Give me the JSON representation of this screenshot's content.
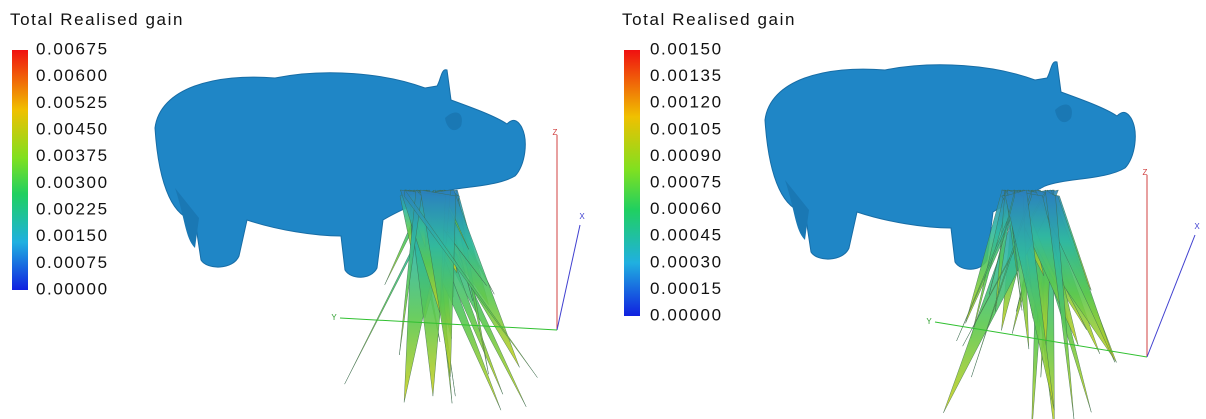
{
  "panels": [
    {
      "title": "Total Realised gain",
      "scale_labels": [
        "0.00675",
        "0.00600",
        "0.00525",
        "0.00450",
        "0.00375",
        "0.00300",
        "0.00225",
        "0.00150",
        "0.00075",
        "0.00000"
      ],
      "axes": {
        "z": "Z",
        "x": "X",
        "y": "Y"
      }
    },
    {
      "title": "Total Realised gain",
      "scale_labels": [
        "0.00150",
        "0.00135",
        "0.00120",
        "0.00105",
        "0.00090",
        "0.00075",
        "0.00060",
        "0.00045",
        "0.00030",
        "0.00015",
        "0.00000"
      ],
      "axes": {
        "z": "Z",
        "x": "X",
        "y": "Y"
      }
    }
  ]
}
